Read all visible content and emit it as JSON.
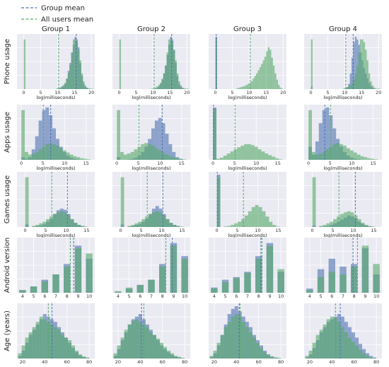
{
  "colors": {
    "group": "#4c72b0",
    "all": "#55a868",
    "panel_bg": "#eaeaf2",
    "grid": "#ffffff"
  },
  "legend": {
    "group_mean": "Group mean",
    "all_users_mean": "All users mean"
  },
  "chart_data": {
    "type": "bar",
    "layout": "4x5 histogram grid",
    "legend_position": "top-left",
    "grid": true,
    "groups": [
      "Group 1",
      "Group 2",
      "Group 3",
      "Group 4"
    ],
    "rows": [
      {
        "ylabel": "Phone usage",
        "xlabel": "log(milliseconds)",
        "xlim": [
          -2,
          21
        ],
        "xticks": [
          0,
          5,
          10,
          15,
          20
        ],
        "tick_labels": [
          "0",
          "5",
          "10",
          "15",
          "20"
        ],
        "bin_start": 0,
        "bin_width": 0.5,
        "all_mean": 10.3,
        "all_hist": [
          0.95,
          0,
          0,
          0,
          0,
          0,
          0,
          0,
          0,
          0,
          0,
          0,
          0,
          0,
          0,
          0,
          0,
          0,
          0,
          0.01,
          0.02,
          0.03,
          0.05,
          0.08,
          0.12,
          0.2,
          0.3,
          0.45,
          0.7,
          0.95,
          0.95,
          0.9,
          0.75,
          0.55,
          0.3,
          0.15,
          0.07,
          0.03,
          0.01,
          0.01,
          0.01,
          0.0
        ],
        "panels": [
          {
            "group_mean": 15.5,
            "hist": [
              0.0,
              0,
              0,
              0,
              0,
              0,
              0,
              0,
              0,
              0,
              0,
              0,
              0,
              0,
              0,
              0,
              0,
              0,
              0,
              0,
              0.01,
              0.02,
              0.04,
              0.06,
              0.1,
              0.2,
              0.35,
              0.5,
              0.7,
              0.85,
              1.0,
              0.95,
              0.8,
              0.5,
              0.25,
              0.1,
              0.04,
              0.02,
              0.01,
              0,
              0,
              0
            ]
          },
          {
            "group_mean": 15.5,
            "hist": [
              0.0,
              0,
              0,
              0,
              0,
              0,
              0,
              0,
              0,
              0,
              0,
              0,
              0,
              0,
              0,
              0,
              0,
              0,
              0,
              0,
              0.0,
              0.01,
              0.02,
              0.05,
              0.1,
              0.18,
              0.3,
              0.45,
              0.65,
              0.85,
              1.0,
              0.95,
              0.75,
              0.5,
              0.25,
              0.1,
              0.05,
              0.02,
              0.01,
              0,
              0,
              0
            ]
          },
          {
            "group_mean": 0.2,
            "all_hist": [
              0.98,
              0,
              0,
              0,
              0,
              0,
              0,
              0,
              0,
              0,
              0,
              0,
              0.01,
              0.02,
              0.03,
              0.04,
              0.05,
              0.06,
              0.08,
              0.1,
              0.12,
              0.15,
              0.2,
              0.25,
              0.3,
              0.36,
              0.42,
              0.48,
              0.55,
              0.62,
              0.72,
              0.8,
              0.75,
              0.6,
              0.45,
              0.3,
              0.18,
              0.08,
              0.03,
              0.01,
              0,
              0
            ],
            "hist": [
              1.0,
              0,
              0,
              0,
              0,
              0,
              0,
              0,
              0,
              0,
              0,
              0,
              0,
              0,
              0,
              0,
              0,
              0,
              0,
              0,
              0,
              0,
              0,
              0,
              0,
              0,
              0,
              0,
              0,
              0,
              0,
              0,
              0,
              0,
              0,
              0,
              0,
              0,
              0,
              0,
              0,
              0
            ]
          },
          {
            "group_mean": 12.5,
            "hist": [
              0.05,
              0,
              0,
              0,
              0,
              0,
              0,
              0,
              0,
              0,
              0,
              0,
              0,
              0,
              0,
              0,
              0,
              0,
              0,
              0,
              0.02,
              0.04,
              0.1,
              0.3,
              0.6,
              0.9,
              1.0,
              0.95,
              0.85,
              0.7,
              0.55,
              0.4,
              0.3,
              0.2,
              0.12,
              0.06,
              0.03,
              0.01,
              0,
              0,
              0,
              0
            ]
          }
        ]
      },
      {
        "ylabel": "Apps usage",
        "xlabel": "log(milliseconds)",
        "xlim": [
          -1,
          17
        ],
        "xticks": [
          0,
          5,
          10,
          15
        ],
        "tick_labels": [
          "0",
          "5",
          "10",
          "15"
        ],
        "bin_start": 0,
        "bin_width": 0.8,
        "all_mean": 5.1,
        "all_hist": [
          0.95,
          0.15,
          0.1,
          0.12,
          0.15,
          0.2,
          0.25,
          0.3,
          0.32,
          0.3,
          0.27,
          0.22,
          0.18,
          0.14,
          0.1,
          0.07,
          0.05,
          0.03,
          0.02,
          0.01,
          0.0
        ],
        "panels": [
          {
            "group_mean": 6.8,
            "hist": [
              0.05,
              0.02,
              0.05,
              0.2,
              0.45,
              0.75,
              0.95,
              1.0,
              0.85,
              0.6,
              0.4,
              0.25,
              0.15,
              0.08,
              0.04,
              0.02,
              0.01,
              0,
              0,
              0,
              0
            ]
          },
          {
            "group_mean": 10.5,
            "hist": [
              0.05,
              0,
              0,
              0.01,
              0.02,
              0.04,
              0.08,
              0.15,
              0.25,
              0.4,
              0.6,
              0.75,
              0.8,
              0.7,
              0.5,
              0.3,
              0.15,
              0.05,
              0.02,
              0,
              0
            ]
          },
          {
            "group_mean": 0.1,
            "all_hist": [
              0.98,
              0.02,
              0.04,
              0.08,
              0.12,
              0.16,
              0.2,
              0.24,
              0.27,
              0.3,
              0.3,
              0.28,
              0.25,
              0.2,
              0.16,
              0.12,
              0.09,
              0.06,
              0.03,
              0.01,
              0
            ],
            "hist": [
              1.0,
              0,
              0,
              0,
              0,
              0,
              0,
              0,
              0,
              0,
              0,
              0,
              0,
              0,
              0,
              0,
              0,
              0,
              0,
              0,
              0
            ]
          },
          {
            "group_mean": 3.8,
            "hist": [
              0.25,
              0.1,
              0.35,
              0.7,
              0.95,
              1.0,
              0.85,
              0.6,
              0.4,
              0.25,
              0.15,
              0.08,
              0.04,
              0.02,
              0.01,
              0,
              0,
              0,
              0,
              0,
              0
            ]
          }
        ]
      },
      {
        "ylabel": "Games usage",
        "xlabel": "log(milliseconds)",
        "xlim": [
          -2,
          17
        ],
        "xticks": [
          0,
          5,
          10,
          15
        ],
        "tick_labels": [
          "0",
          "5",
          "10",
          "15"
        ],
        "bin_start": 0,
        "bin_width": 0.85,
        "all_mean": 6.5,
        "all_hist": [
          0.95,
          0,
          0.02,
          0.04,
          0.07,
          0.1,
          0.15,
          0.2,
          0.25,
          0.28,
          0.3,
          0.28,
          0.22,
          0.15,
          0.08,
          0.04,
          0.02,
          0.01,
          0.0
        ],
        "panels": [
          {
            "group_mean": 10.3,
            "hist": [
              0.05,
              0,
              0.01,
              0.02,
              0.03,
              0.05,
              0.1,
              0.15,
              0.25,
              0.32,
              0.35,
              0.33,
              0.25,
              0.15,
              0.08,
              0.04,
              0.02,
              0,
              0
            ]
          },
          {
            "group_mean": 10.3,
            "hist": [
              0.05,
              0,
              0.01,
              0.02,
              0.04,
              0.06,
              0.1,
              0.15,
              0.25,
              0.35,
              0.4,
              0.35,
              0.25,
              0.15,
              0.08,
              0.04,
              0.02,
              0,
              0
            ]
          },
          {
            "group_mean": 0.1,
            "all_hist": [
              0.95,
              0,
              0.01,
              0.02,
              0.04,
              0.07,
              0.1,
              0.15,
              0.22,
              0.3,
              0.38,
              0.42,
              0.38,
              0.3,
              0.2,
              0.1,
              0.04,
              0.01,
              0
            ],
            "hist": [
              1.0,
              0,
              0,
              0,
              0,
              0,
              0,
              0,
              0,
              0,
              0,
              0,
              0,
              0,
              0,
              0,
              0,
              0,
              0
            ]
          },
          {
            "group_mean": 10.5,
            "hist": [
              0.03,
              0,
              0.01,
              0.01,
              0.02,
              0.04,
              0.07,
              0.1,
              0.14,
              0.18,
              0.22,
              0.2,
              0.16,
              0.1,
              0.06,
              0.03,
              0.01,
              0,
              0
            ]
          }
        ]
      },
      {
        "ylabel": "Android version",
        "xlabel": "",
        "xlim": [
          3.5,
          10.5
        ],
        "xticks": [
          4,
          5,
          6,
          7,
          8,
          9,
          10
        ],
        "tick_labels": [
          "4",
          "5",
          "6",
          "7",
          "8",
          "9",
          "10"
        ],
        "bin_start": 3.7,
        "bin_width": 0.6,
        "bars_at": [
          4,
          5,
          6,
          7,
          8,
          9,
          10
        ],
        "panels": [
          {
            "group_mean": 8.6,
            "all_mean": 8.3,
            "hist": [
              0.05,
              0.12,
              0.25,
              0.35,
              0.55,
              0.9,
              0.65
            ],
            "all_hist": [
              0.05,
              0.12,
              0.22,
              0.35,
              0.5,
              0.85,
              0.75
            ]
          },
          {
            "group_mean": 8.9,
            "all_mean": 8.3,
            "hist": [
              0.02,
              0.08,
              0.15,
              0.25,
              0.55,
              0.95,
              0.7
            ],
            "all_hist": [
              0.03,
              0.1,
              0.15,
              0.25,
              0.5,
              0.9,
              0.65
            ]
          },
          {
            "group_mean": 8.2,
            "all_mean": 8.3,
            "hist": [
              0.1,
              0.25,
              0.3,
              0.4,
              0.7,
              0.95,
              0.4
            ],
            "all_hist": [
              0.08,
              0.2,
              0.28,
              0.38,
              0.65,
              0.9,
              0.45
            ]
          },
          {
            "group_mean": 7.9,
            "all_mean": 8.3,
            "hist": [
              0.08,
              0.45,
              0.65,
              0.5,
              0.55,
              0.85,
              0.35
            ],
            "all_hist": [
              0.05,
              0.3,
              0.4,
              0.35,
              0.5,
              0.9,
              0.55
            ]
          }
        ]
      },
      {
        "ylabel": "Age (years)",
        "xlabel": "",
        "xlim": [
          15,
          85
        ],
        "xticks": [
          20,
          40,
          60,
          80
        ],
        "tick_labels": [
          "20",
          "40",
          "60",
          "80"
        ],
        "bin_start": 16,
        "bin_width": 3.2,
        "panels": [
          {
            "group_mean": 46.5,
            "all_mean": 43.2,
            "hist": [
              0.05,
              0.15,
              0.3,
              0.45,
              0.55,
              0.65,
              0.75,
              0.85,
              0.8,
              0.75,
              0.7,
              0.6,
              0.5,
              0.4,
              0.3,
              0.2,
              0.12,
              0.06,
              0.03,
              0.01,
              0
            ],
            "all_hist": [
              0.1,
              0.25,
              0.4,
              0.5,
              0.6,
              0.7,
              0.8,
              0.75,
              0.7,
              0.65,
              0.6,
              0.55,
              0.45,
              0.4,
              0.35,
              0.25,
              0.15,
              0.08,
              0.04,
              0.02,
              0
            ]
          },
          {
            "group_mean": 41.0,
            "all_mean": 43.2,
            "hist": [
              0.05,
              0.18,
              0.35,
              0.5,
              0.65,
              0.75,
              0.8,
              0.85,
              0.75,
              0.65,
              0.55,
              0.45,
              0.35,
              0.25,
              0.18,
              0.12,
              0.07,
              0.04,
              0.02,
              0.01,
              0
            ],
            "all_hist": [
              0.1,
              0.25,
              0.4,
              0.55,
              0.65,
              0.72,
              0.75,
              0.7,
              0.65,
              0.6,
              0.5,
              0.45,
              0.38,
              0.3,
              0.22,
              0.15,
              0.1,
              0.05,
              0.03,
              0.01,
              0
            ]
          },
          {
            "group_mean": 42.5,
            "all_mean": 43.2,
            "hist": [
              0.03,
              0.1,
              0.25,
              0.45,
              0.65,
              0.85,
              0.95,
              1.0,
              0.9,
              0.8,
              0.7,
              0.6,
              0.45,
              0.35,
              0.25,
              0.15,
              0.08,
              0.04,
              0.02,
              0.01,
              0
            ],
            "all_hist": [
              0.05,
              0.15,
              0.3,
              0.45,
              0.6,
              0.7,
              0.8,
              0.85,
              0.8,
              0.7,
              0.6,
              0.5,
              0.4,
              0.3,
              0.2,
              0.12,
              0.07,
              0.04,
              0.02,
              0.01,
              0
            ]
          },
          {
            "group_mean": 47.5,
            "all_mean": 43.2,
            "hist": [
              0.02,
              0.08,
              0.2,
              0.35,
              0.5,
              0.6,
              0.7,
              0.75,
              0.8,
              0.85,
              0.8,
              0.7,
              0.6,
              0.5,
              0.4,
              0.28,
              0.18,
              0.1,
              0.05,
              0.02,
              0
            ],
            "all_hist": [
              0.05,
              0.15,
              0.3,
              0.45,
              0.55,
              0.65,
              0.75,
              0.8,
              0.78,
              0.7,
              0.6,
              0.5,
              0.4,
              0.32,
              0.25,
              0.16,
              0.1,
              0.05,
              0.02,
              0.01,
              0
            ]
          }
        ]
      }
    ]
  }
}
